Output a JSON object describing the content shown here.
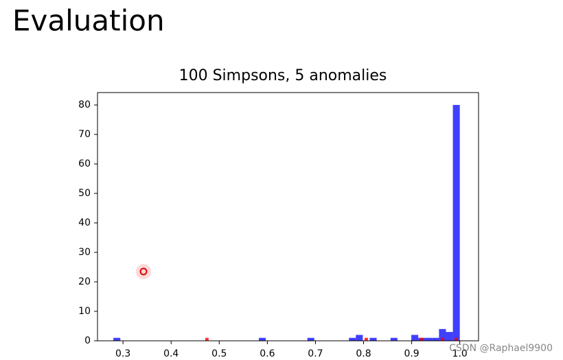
{
  "slide_title": "Evaluation",
  "watermark": "CSDN @Raphael9900",
  "chart_data": {
    "type": "histogram",
    "title": "100 Simpsons, 5 anomalies",
    "bins": [
      0.28,
      0.2944,
      0.3088,
      0.3232,
      0.3376,
      0.352,
      0.3664,
      0.3808,
      0.3952,
      0.4096,
      0.424,
      0.4384,
      0.4528,
      0.4672,
      0.4816,
      0.496,
      0.5104,
      0.5248,
      0.5392,
      0.5536,
      0.568,
      0.5824,
      0.5968,
      0.6112,
      0.6256,
      0.64,
      0.6544,
      0.6688,
      0.6832,
      0.6976,
      0.712,
      0.7264,
      0.7408,
      0.7552,
      0.7696,
      0.784,
      0.7984,
      0.8128,
      0.8272,
      0.8416,
      0.856,
      0.8704,
      0.8848,
      0.8992,
      0.9136,
      0.928,
      0.9424,
      0.9568,
      0.9712,
      0.9856,
      1.0
    ],
    "series": [
      {
        "color": "#0000ff",
        "values": [
          1,
          0,
          0,
          0,
          0,
          0,
          0,
          0,
          0,
          0,
          0,
          0,
          0,
          0,
          0,
          0,
          0,
          0,
          0,
          0,
          0,
          1,
          0,
          0,
          0,
          0,
          0,
          0,
          1,
          0,
          0,
          0,
          0,
          0,
          1,
          2,
          0,
          1,
          0,
          0,
          1,
          0,
          0,
          2,
          1,
          1,
          1,
          4,
          3,
          80
        ]
      },
      {
        "color": "#ff0000",
        "values": [
          0,
          0,
          0,
          0,
          0,
          0,
          0,
          0,
          0,
          0,
          0,
          0,
          0,
          1,
          0,
          0,
          0,
          0,
          0,
          0,
          0,
          0,
          0,
          0,
          0,
          0,
          0,
          0,
          0,
          0,
          0,
          0,
          0,
          0,
          0,
          0,
          1,
          0,
          0,
          0,
          0,
          0,
          0,
          0,
          1,
          0,
          0,
          1,
          0,
          1
        ]
      }
    ],
    "xlim": [
      0.247,
      1.039
    ],
    "ylim": [
      0,
      84.2
    ],
    "xticks": [
      {
        "value": 0.3,
        "label": "0.3"
      },
      0.4,
      0.5,
      0.6,
      0.7,
      0.8,
      0.9,
      {
        "value": 1.0,
        "label": "1.0"
      }
    ],
    "yticks": [
      0,
      10,
      20,
      30,
      40,
      50,
      60,
      70,
      80
    ]
  }
}
